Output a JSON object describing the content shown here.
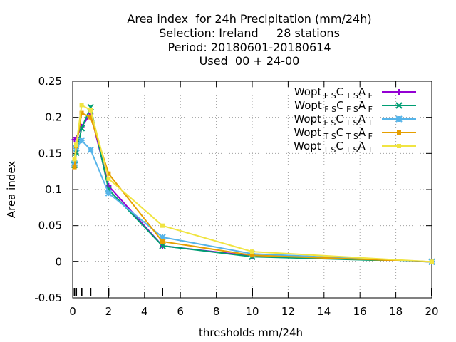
{
  "title": {
    "line1": "Area index  for 24h Precipitation (mm/24h)",
    "line2": "Selection: Ireland     28 stations",
    "line3": "Period: 20180601-20180614",
    "line4": "Used  00 + 24-00"
  },
  "chart_data": {
    "type": "line",
    "xlabel": "thresholds mm/24h",
    "ylabel": "Area index",
    "xlim": [
      0,
      20
    ],
    "ylim": [
      -0.05,
      0.25
    ],
    "xticks": [
      0,
      2,
      4,
      6,
      8,
      10,
      12,
      14,
      16,
      18,
      20
    ],
    "yticks": [
      -0.05,
      0,
      0.05,
      0.1,
      0.15,
      0.2,
      0.25
    ],
    "ytick_labels": [
      "-0.05",
      "0",
      "0.05",
      "0.1",
      "0.15",
      "0.2",
      "0.25"
    ],
    "grid": true,
    "legend_position": "top-right",
    "threshold_marks": [
      0.1,
      0.2,
      0.5,
      1,
      2,
      5,
      10,
      20
    ],
    "x": [
      0.1,
      0.2,
      0.5,
      1,
      2,
      5,
      10,
      20
    ],
    "series": [
      {
        "name": "Wopt FS C TS A F",
        "color": "#9400d3",
        "marker": "plus",
        "legend": {
          "base": "Wopt",
          "subs": [
            "FS",
            "TS",
            "F"
          ]
        },
        "values": [
          0.169,
          0.172,
          0.187,
          0.205,
          0.105,
          0.022,
          0.008,
          0.0
        ]
      },
      {
        "name": "Wopt FS C FS A F",
        "color": "#009e73",
        "marker": "cross",
        "legend": {
          "base": "Wopt",
          "subs": [
            "FS",
            "FS",
            "F"
          ]
        },
        "values": [
          0.134,
          0.151,
          0.185,
          0.214,
          0.1,
          0.022,
          0.007,
          0.0
        ]
      },
      {
        "name": "Wopt FS C TS A T",
        "color": "#56b4e9",
        "marker": "star",
        "legend": {
          "base": "Wopt",
          "subs": [
            "FS",
            "TS",
            "T"
          ]
        },
        "values": [
          0.136,
          0.157,
          0.168,
          0.155,
          0.095,
          0.034,
          0.011,
          0.0
        ]
      },
      {
        "name": "Wopt TS C TS A F",
        "color": "#e69f00",
        "marker": "square",
        "legend": {
          "base": "Wopt",
          "subs": [
            "TS",
            "TS",
            "F"
          ]
        },
        "values": [
          0.131,
          0.16,
          0.206,
          0.2,
          0.122,
          0.028,
          0.009,
          0.0
        ]
      },
      {
        "name": "Wopt TS C TS A T",
        "color": "#f0e442",
        "marker": "square",
        "legend": {
          "base": "Wopt",
          "subs": [
            "TS",
            "TS",
            "T"
          ]
        },
        "values": [
          0.142,
          0.162,
          0.217,
          0.21,
          0.115,
          0.05,
          0.014,
          0.0
        ]
      }
    ]
  }
}
